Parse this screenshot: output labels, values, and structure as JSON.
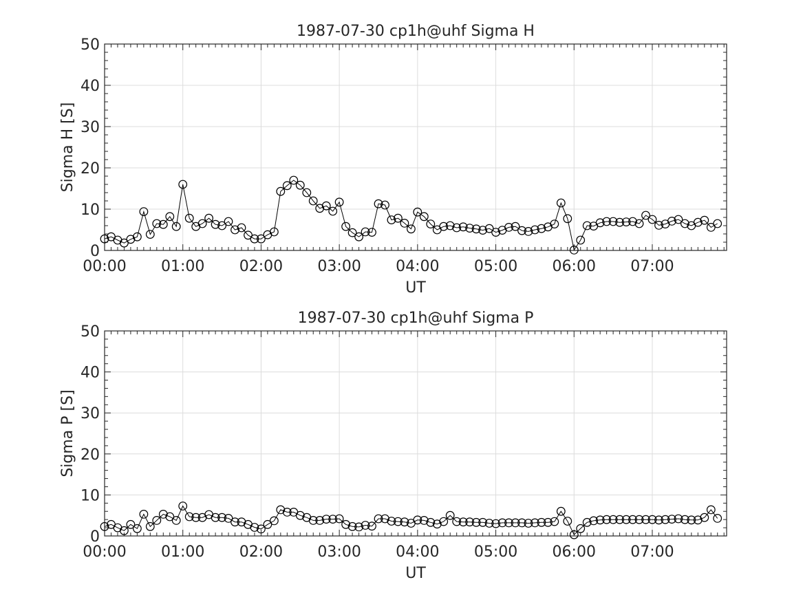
{
  "chart_data": [
    {
      "type": "line",
      "title": "1987-07-30  cp1h@uhf Sigma H",
      "xlabel": "UT",
      "ylabel": "Sigma H [S]",
      "xlim": [
        0,
        7.95
      ],
      "ylim": [
        0,
        50
      ],
      "x_ticks": [
        0,
        1,
        2,
        3,
        4,
        5,
        6,
        7
      ],
      "x_tick_labels": [
        "00:00",
        "01:00",
        "02:00",
        "03:00",
        "04:00",
        "05:00",
        "06:00",
        "07:00"
      ],
      "y_ticks": [
        0,
        10,
        20,
        30,
        40,
        50
      ],
      "y_tick_labels": [
        "0",
        "10",
        "20",
        "30",
        "40",
        "50"
      ],
      "grid": true,
      "marker": "open-circle",
      "line_color": "#000000",
      "interval_hours": 0.0833333,
      "values": [
        2.8,
        3.3,
        2.5,
        1.8,
        2.7,
        3.3,
        9.4,
        3.9,
        6.5,
        6.3,
        8.2,
        5.8,
        16.0,
        7.8,
        5.8,
        6.5,
        7.8,
        6.3,
        6.0,
        7.0,
        5.0,
        5.5,
        3.7,
        2.8,
        2.8,
        3.8,
        4.5,
        14.3,
        15.7,
        17.0,
        15.8,
        14.0,
        12.0,
        10.2,
        10.8,
        9.5,
        11.7,
        5.8,
        4.3,
        3.3,
        4.5,
        4.4,
        11.3,
        11.0,
        7.4,
        7.8,
        6.6,
        5.2,
        9.3,
        8.2,
        6.4,
        5.0,
        5.8,
        6.0,
        5.5,
        5.7,
        5.4,
        5.2,
        4.9,
        5.3,
        4.4,
        4.9,
        5.6,
        5.8,
        4.8,
        4.6,
        5.0,
        5.3,
        5.7,
        6.4,
        11.5,
        7.7,
        0.1,
        2.5,
        6.0,
        5.9,
        6.7,
        7.0,
        7.0,
        6.8,
        6.9,
        7.0,
        6.5,
        8.5,
        7.5,
        6.1,
        6.4,
        7.1,
        7.5,
        6.5,
        6.0,
        6.8,
        7.3,
        5.6,
        6.5
      ]
    },
    {
      "type": "line",
      "title": "1987-07-30  cp1h@uhf Sigma P",
      "xlabel": "UT",
      "ylabel": "Sigma P [S]",
      "xlim": [
        0,
        7.95
      ],
      "ylim": [
        0,
        50
      ],
      "x_ticks": [
        0,
        1,
        2,
        3,
        4,
        5,
        6,
        7
      ],
      "x_tick_labels": [
        "00:00",
        "01:00",
        "02:00",
        "03:00",
        "04:00",
        "05:00",
        "06:00",
        "07:00"
      ],
      "y_ticks": [
        0,
        10,
        20,
        30,
        40,
        50
      ],
      "y_tick_labels": [
        "0",
        "10",
        "20",
        "30",
        "40",
        "50"
      ],
      "grid": true,
      "marker": "open-circle",
      "line_color": "#000000",
      "interval_hours": 0.0833333,
      "values": [
        2.3,
        2.8,
        2.0,
        1.3,
        2.8,
        1.8,
        5.3,
        2.3,
        3.8,
        5.3,
        4.7,
        3.8,
        7.3,
        4.7,
        4.5,
        4.5,
        5.2,
        4.5,
        4.5,
        4.3,
        3.4,
        3.4,
        2.8,
        2.1,
        1.7,
        2.8,
        3.7,
        6.4,
        5.8,
        5.8,
        5.0,
        4.5,
        3.8,
        3.8,
        4.1,
        4.1,
        4.2,
        2.8,
        2.3,
        2.2,
        2.6,
        2.4,
        4.2,
        4.2,
        3.6,
        3.5,
        3.4,
        3.1,
        3.9,
        3.8,
        3.3,
        2.9,
        3.5,
        5.0,
        3.5,
        3.4,
        3.4,
        3.3,
        3.3,
        3.1,
        3.0,
        3.2,
        3.2,
        3.2,
        3.2,
        3.1,
        3.2,
        3.3,
        3.3,
        3.5,
        6.0,
        3.6,
        0.3,
        1.8,
        3.3,
        3.7,
        3.9,
        4.0,
        4.0,
        4.0,
        4.0,
        4.0,
        4.0,
        4.0,
        4.0,
        3.9,
        4.0,
        4.1,
        4.2,
        4.0,
        3.9,
        3.9,
        4.5,
        6.4,
        4.3
      ]
    }
  ]
}
